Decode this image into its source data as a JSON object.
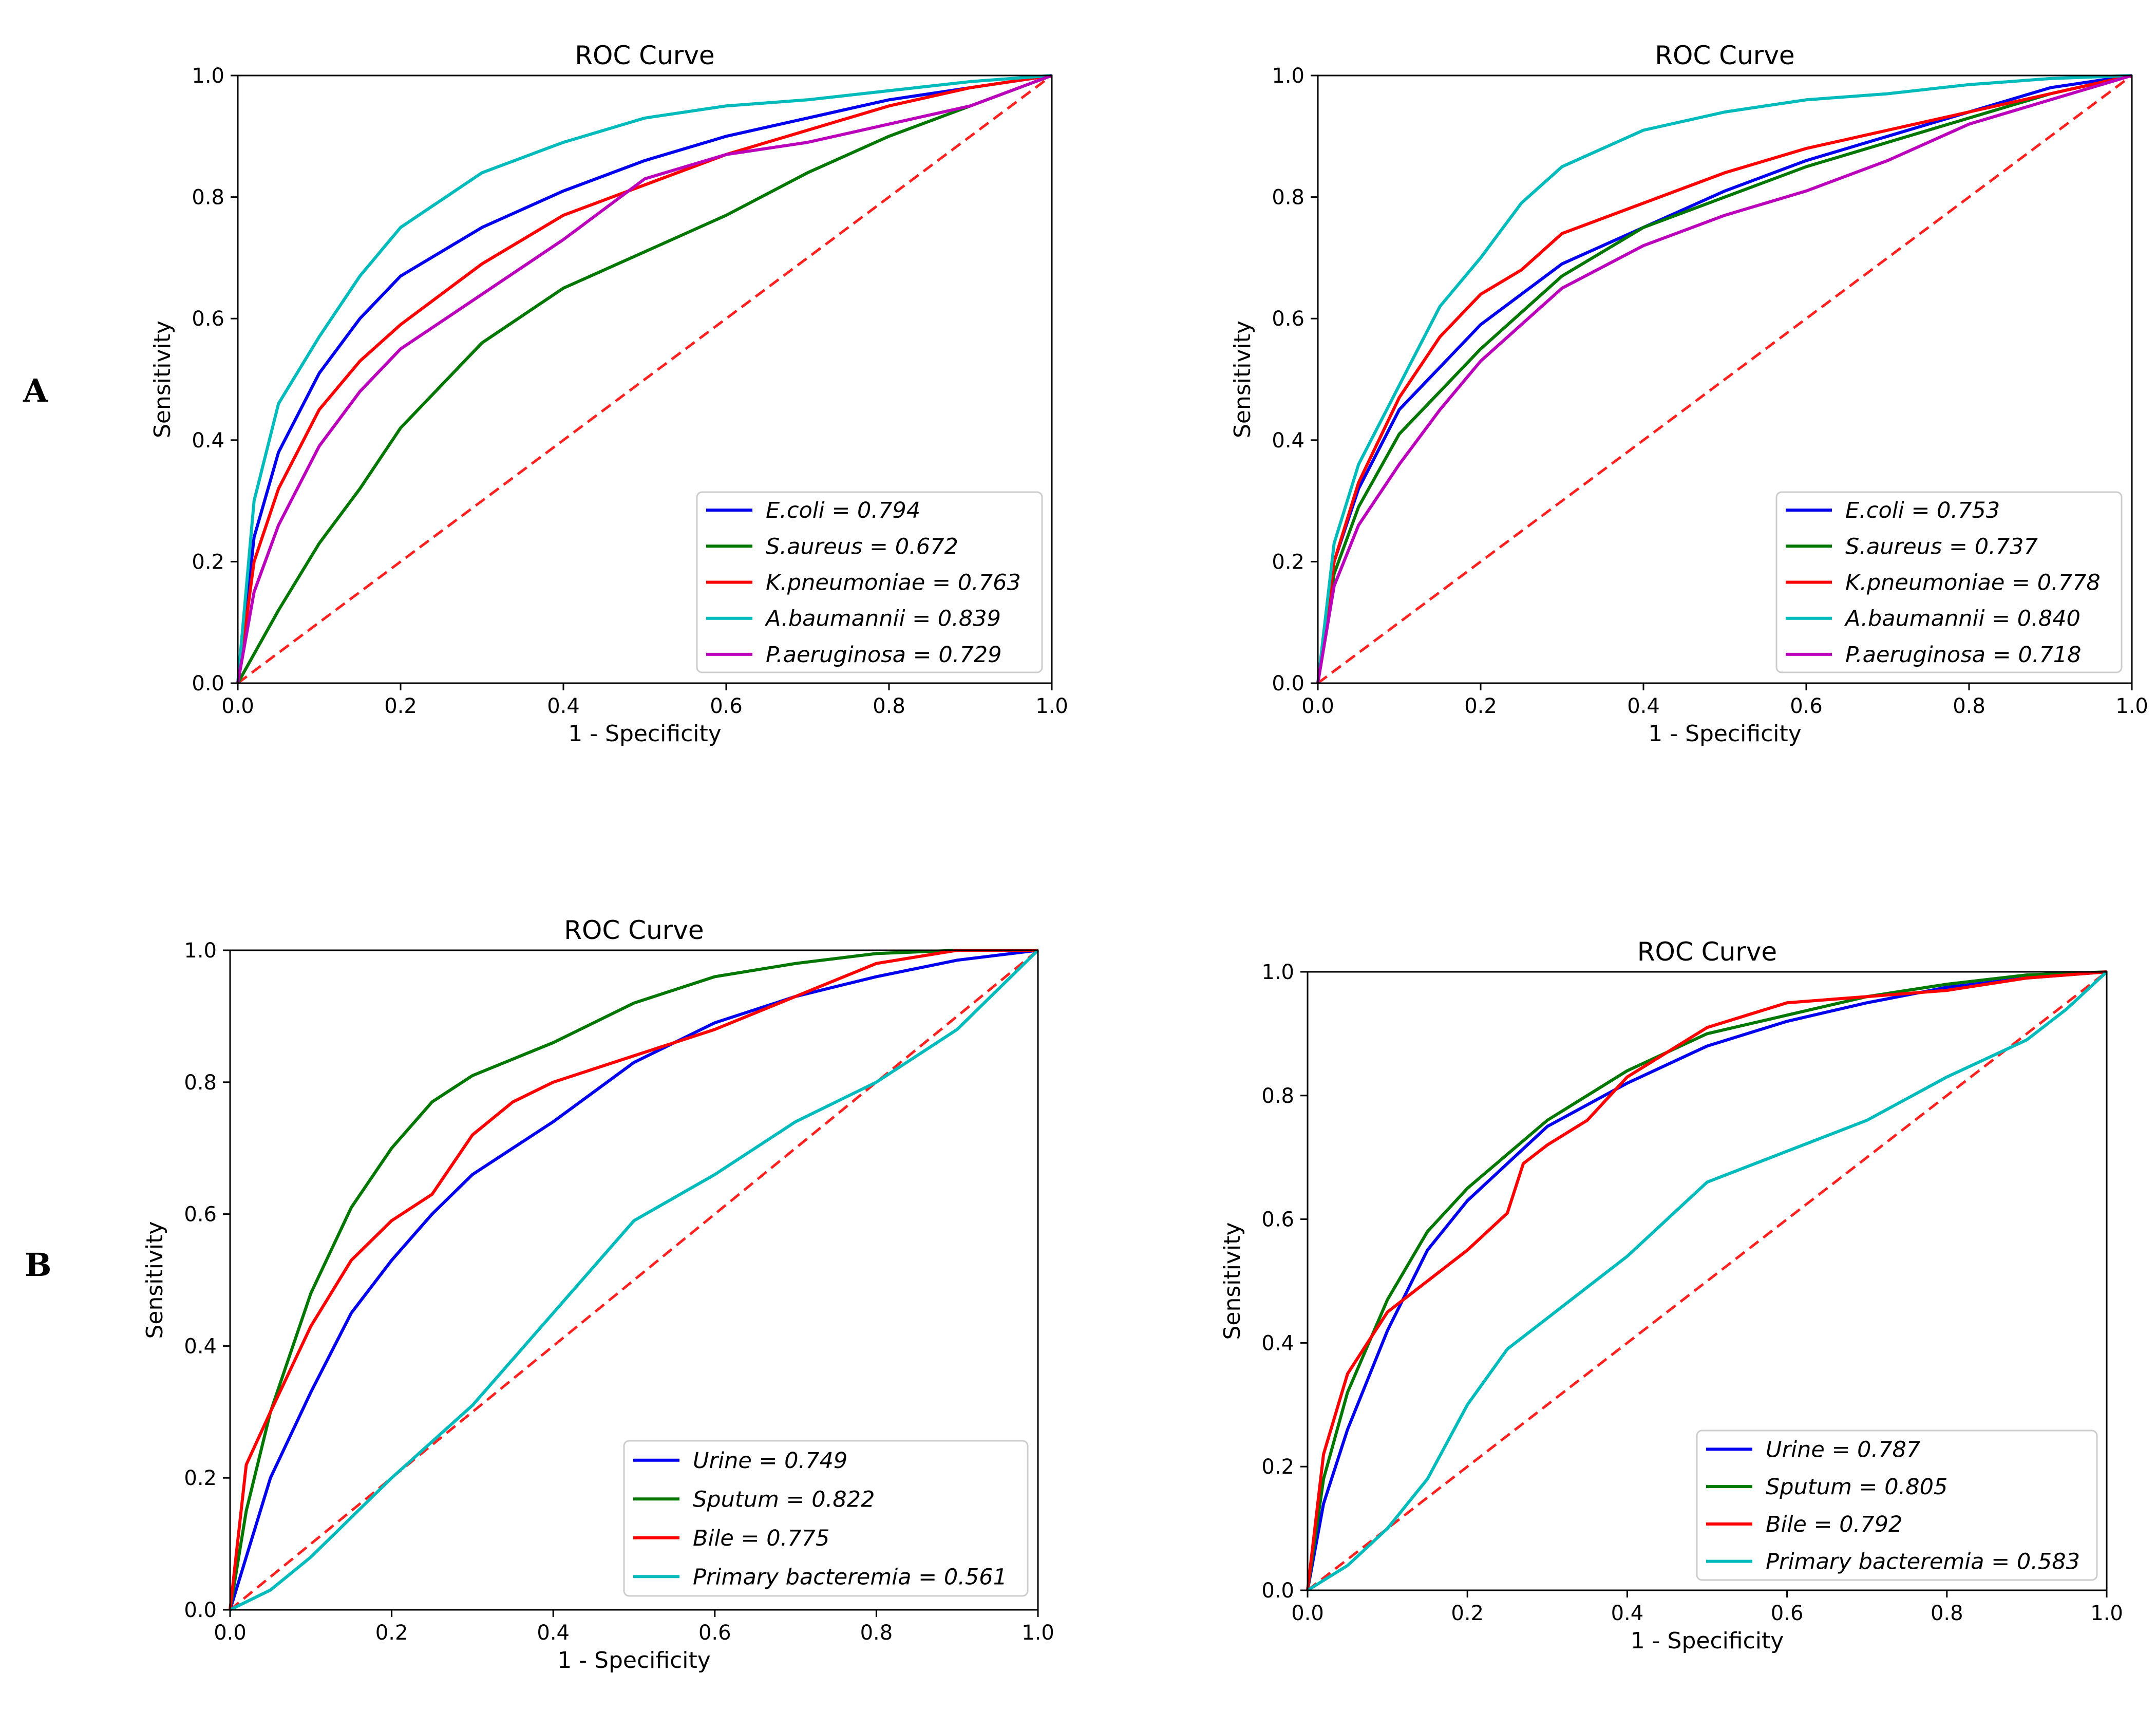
{
  "panel_labels": [
    "A",
    "B"
  ],
  "chart_data": [
    {
      "type": "line",
      "title": "ROC Curve",
      "xlabel": "1 - Specificity",
      "ylabel": "Sensitivity",
      "xlim": [
        0,
        1
      ],
      "ylim": [
        0,
        1
      ],
      "xticks": [
        "0.0",
        "0.2",
        "0.4",
        "0.6",
        "0.8",
        "1.0"
      ],
      "yticks": [
        "0.0",
        "0.2",
        "0.4",
        "0.6",
        "0.8",
        "1.0"
      ],
      "grid": false,
      "legend_position": "lower-right",
      "diagonal_color": "#ff2020",
      "series": [
        {
          "name": "E.coli = 0.794",
          "color": "#0000ee",
          "x": [
            0,
            0.02,
            0.05,
            0.1,
            0.15,
            0.2,
            0.3,
            0.4,
            0.5,
            0.6,
            0.7,
            0.8,
            0.9,
            1.0
          ],
          "y": [
            0,
            0.24,
            0.38,
            0.51,
            0.6,
            0.67,
            0.75,
            0.81,
            0.86,
            0.9,
            0.93,
            0.96,
            0.98,
            1.0
          ]
        },
        {
          "name": "S.aureus = 0.672",
          "color": "#007700",
          "x": [
            0,
            0.05,
            0.1,
            0.15,
            0.2,
            0.3,
            0.4,
            0.5,
            0.6,
            0.7,
            0.8,
            0.9,
            1.0
          ],
          "y": [
            0,
            0.12,
            0.23,
            0.32,
            0.42,
            0.56,
            0.65,
            0.71,
            0.77,
            0.84,
            0.9,
            0.95,
            1.0
          ]
        },
        {
          "name": "K.pneumoniae = 0.763",
          "color": "#ff0000",
          "x": [
            0,
            0.02,
            0.05,
            0.1,
            0.15,
            0.2,
            0.3,
            0.4,
            0.5,
            0.6,
            0.7,
            0.8,
            0.9,
            1.0
          ],
          "y": [
            0,
            0.2,
            0.32,
            0.45,
            0.53,
            0.59,
            0.69,
            0.77,
            0.82,
            0.87,
            0.91,
            0.95,
            0.98,
            1.0
          ]
        },
        {
          "name": "A.baumannii = 0.839",
          "color": "#00bbbb",
          "x": [
            0,
            0.02,
            0.05,
            0.1,
            0.15,
            0.2,
            0.3,
            0.4,
            0.5,
            0.6,
            0.7,
            0.8,
            0.9,
            1.0
          ],
          "y": [
            0,
            0.3,
            0.46,
            0.57,
            0.67,
            0.75,
            0.84,
            0.89,
            0.93,
            0.95,
            0.96,
            0.975,
            0.99,
            1.0
          ]
        },
        {
          "name": "P.aeruginosa = 0.729",
          "color": "#bb00bb",
          "x": [
            0,
            0.02,
            0.05,
            0.1,
            0.15,
            0.2,
            0.3,
            0.4,
            0.5,
            0.6,
            0.7,
            0.8,
            0.9,
            1.0
          ],
          "y": [
            0,
            0.15,
            0.26,
            0.39,
            0.48,
            0.55,
            0.64,
            0.73,
            0.83,
            0.87,
            0.89,
            0.92,
            0.95,
            1.0
          ]
        }
      ]
    },
    {
      "type": "line",
      "title": "ROC Curve",
      "xlabel": "1 - Specificity",
      "ylabel": "Sensitivity",
      "xlim": [
        0,
        1
      ],
      "ylim": [
        0,
        1
      ],
      "xticks": [
        "0.0",
        "0.2",
        "0.4",
        "0.6",
        "0.8",
        "1.0"
      ],
      "yticks": [
        "0.0",
        "0.2",
        "0.4",
        "0.6",
        "0.8",
        "1.0"
      ],
      "grid": false,
      "legend_position": "lower-right",
      "diagonal_color": "#ff2020",
      "series": [
        {
          "name": "E.coli = 0.753",
          "color": "#0000ee",
          "x": [
            0,
            0.02,
            0.05,
            0.1,
            0.15,
            0.2,
            0.3,
            0.4,
            0.5,
            0.6,
            0.7,
            0.8,
            0.9,
            1.0
          ],
          "y": [
            0,
            0.2,
            0.32,
            0.45,
            0.52,
            0.59,
            0.69,
            0.75,
            0.81,
            0.86,
            0.9,
            0.94,
            0.98,
            1.0
          ]
        },
        {
          "name": "S.aureus = 0.737",
          "color": "#007700",
          "x": [
            0,
            0.02,
            0.05,
            0.1,
            0.15,
            0.2,
            0.3,
            0.4,
            0.5,
            0.6,
            0.7,
            0.8,
            0.9,
            1.0
          ],
          "y": [
            0,
            0.18,
            0.29,
            0.41,
            0.48,
            0.55,
            0.67,
            0.75,
            0.8,
            0.85,
            0.89,
            0.93,
            0.97,
            1.0
          ]
        },
        {
          "name": "K.pneumoniae = 0.778",
          "color": "#ff0000",
          "x": [
            0,
            0.02,
            0.05,
            0.1,
            0.15,
            0.2,
            0.25,
            0.3,
            0.4,
            0.5,
            0.6,
            0.7,
            0.8,
            0.9,
            1.0
          ],
          "y": [
            0,
            0.2,
            0.33,
            0.47,
            0.57,
            0.64,
            0.68,
            0.74,
            0.79,
            0.84,
            0.88,
            0.91,
            0.94,
            0.97,
            1.0
          ]
        },
        {
          "name": "A.baumannii = 0.840",
          "color": "#00bbbb",
          "x": [
            0,
            0.02,
            0.05,
            0.1,
            0.15,
            0.2,
            0.25,
            0.3,
            0.4,
            0.5,
            0.6,
            0.7,
            0.8,
            0.9,
            1.0
          ],
          "y": [
            0,
            0.23,
            0.36,
            0.49,
            0.62,
            0.7,
            0.79,
            0.85,
            0.91,
            0.94,
            0.96,
            0.97,
            0.985,
            0.995,
            1.0
          ]
        },
        {
          "name": "P.aeruginosa = 0.718",
          "color": "#bb00bb",
          "x": [
            0,
            0.02,
            0.05,
            0.1,
            0.15,
            0.2,
            0.3,
            0.4,
            0.5,
            0.6,
            0.7,
            0.8,
            0.9,
            1.0
          ],
          "y": [
            0,
            0.16,
            0.26,
            0.36,
            0.45,
            0.53,
            0.65,
            0.72,
            0.77,
            0.81,
            0.86,
            0.92,
            0.96,
            1.0
          ]
        }
      ]
    },
    {
      "type": "line",
      "title": "ROC Curve",
      "xlabel": "1 - Specificity",
      "ylabel": "Sensitivity",
      "xlim": [
        0,
        1
      ],
      "ylim": [
        0,
        1
      ],
      "xticks": [
        "0.0",
        "0.2",
        "0.4",
        "0.6",
        "0.8",
        "1.0"
      ],
      "yticks": [
        "0.0",
        "0.2",
        "0.4",
        "0.6",
        "0.8",
        "1.0"
      ],
      "grid": false,
      "legend_position": "lower-right",
      "diagonal_color": "#ff2020",
      "series": [
        {
          "name": "Urine = 0.749",
          "color": "#0000ee",
          "x": [
            0,
            0.05,
            0.1,
            0.15,
            0.2,
            0.25,
            0.3,
            0.4,
            0.5,
            0.6,
            0.7,
            0.8,
            0.9,
            1.0
          ],
          "y": [
            0,
            0.2,
            0.33,
            0.45,
            0.53,
            0.6,
            0.66,
            0.74,
            0.83,
            0.89,
            0.93,
            0.96,
            0.985,
            1.0
          ]
        },
        {
          "name": "Sputum = 0.822",
          "color": "#007700",
          "x": [
            0,
            0.02,
            0.05,
            0.1,
            0.15,
            0.2,
            0.25,
            0.3,
            0.4,
            0.5,
            0.6,
            0.7,
            0.8,
            0.9,
            1.0
          ],
          "y": [
            0,
            0.15,
            0.3,
            0.48,
            0.61,
            0.7,
            0.77,
            0.81,
            0.86,
            0.92,
            0.96,
            0.98,
            0.995,
            1.0,
            1.0
          ]
        },
        {
          "name": "Bile = 0.775",
          "color": "#ff0000",
          "x": [
            0,
            0.02,
            0.05,
            0.1,
            0.15,
            0.2,
            0.25,
            0.3,
            0.35,
            0.4,
            0.5,
            0.6,
            0.7,
            0.8,
            0.9,
            1.0
          ],
          "y": [
            0,
            0.22,
            0.3,
            0.43,
            0.53,
            0.59,
            0.63,
            0.72,
            0.77,
            0.8,
            0.84,
            0.88,
            0.93,
            0.98,
            1.0,
            1.0
          ]
        },
        {
          "name": "Primary bacteremia = 0.561",
          "color": "#00bbbb",
          "x": [
            0,
            0.05,
            0.1,
            0.2,
            0.3,
            0.4,
            0.5,
            0.6,
            0.7,
            0.8,
            0.9,
            1.0
          ],
          "y": [
            0,
            0.03,
            0.08,
            0.2,
            0.31,
            0.45,
            0.59,
            0.66,
            0.74,
            0.8,
            0.88,
            1.0
          ]
        }
      ]
    },
    {
      "type": "line",
      "title": "ROC Curve",
      "xlabel": "1 - Specificity",
      "ylabel": "Sensitivity",
      "xlim": [
        0,
        1
      ],
      "ylim": [
        0,
        1
      ],
      "xticks": [
        "0.0",
        "0.2",
        "0.4",
        "0.6",
        "0.8",
        "1.0"
      ],
      "yticks": [
        "0.0",
        "0.2",
        "0.4",
        "0.6",
        "0.8",
        "1.0"
      ],
      "grid": false,
      "legend_position": "lower-right",
      "diagonal_color": "#ff2020",
      "series": [
        {
          "name": "Urine = 0.787",
          "color": "#0000ee",
          "x": [
            0,
            0.02,
            0.05,
            0.1,
            0.15,
            0.2,
            0.3,
            0.4,
            0.5,
            0.6,
            0.7,
            0.8,
            0.9,
            1.0
          ],
          "y": [
            0,
            0.14,
            0.26,
            0.42,
            0.55,
            0.63,
            0.75,
            0.82,
            0.88,
            0.92,
            0.95,
            0.975,
            0.99,
            1.0
          ]
        },
        {
          "name": "Sputum = 0.805",
          "color": "#007700",
          "x": [
            0,
            0.02,
            0.05,
            0.1,
            0.15,
            0.2,
            0.3,
            0.4,
            0.5,
            0.6,
            0.7,
            0.8,
            0.9,
            1.0
          ],
          "y": [
            0,
            0.18,
            0.32,
            0.47,
            0.58,
            0.65,
            0.76,
            0.84,
            0.9,
            0.93,
            0.96,
            0.98,
            0.995,
            1.0
          ]
        },
        {
          "name": "Bile = 0.792",
          "color": "#ff0000",
          "x": [
            0,
            0.02,
            0.05,
            0.1,
            0.15,
            0.2,
            0.25,
            0.27,
            0.3,
            0.35,
            0.4,
            0.5,
            0.6,
            0.7,
            0.8,
            0.9,
            1.0
          ],
          "y": [
            0,
            0.22,
            0.35,
            0.45,
            0.5,
            0.55,
            0.61,
            0.69,
            0.72,
            0.76,
            0.83,
            0.91,
            0.95,
            0.96,
            0.97,
            0.99,
            1.0
          ]
        },
        {
          "name": "Primary bacteremia = 0.583",
          "color": "#00bbbb",
          "x": [
            0,
            0.05,
            0.1,
            0.15,
            0.2,
            0.25,
            0.3,
            0.4,
            0.5,
            0.6,
            0.7,
            0.8,
            0.9,
            0.95,
            1.0
          ],
          "y": [
            0,
            0.04,
            0.1,
            0.18,
            0.3,
            0.39,
            0.44,
            0.54,
            0.66,
            0.71,
            0.76,
            0.83,
            0.89,
            0.94,
            1.0
          ]
        }
      ]
    }
  ]
}
